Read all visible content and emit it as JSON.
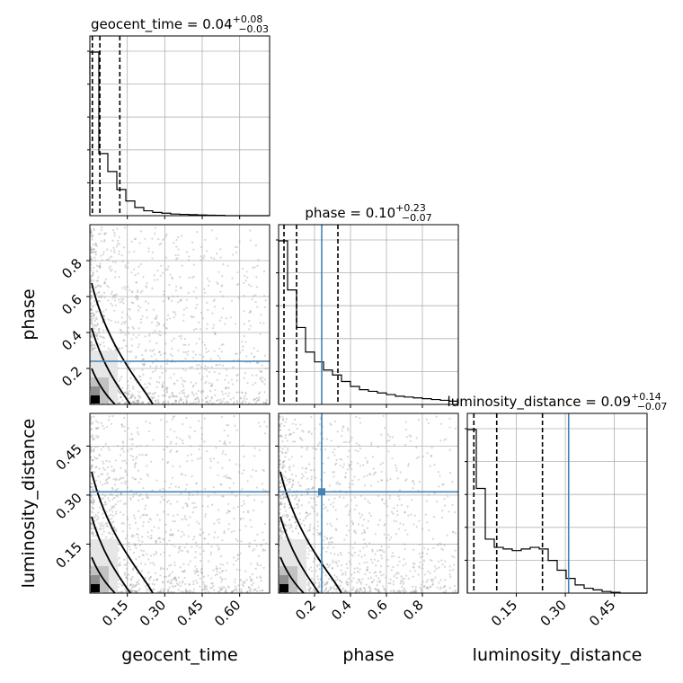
{
  "chart_data": {
    "type": "corner",
    "parameters": [
      "geocent_time",
      "phase",
      "luminosity_distance"
    ],
    "truths": [
      null,
      0.24,
      0.31
    ],
    "titles": [
      {
        "param": "geocent_time",
        "median": "0.04",
        "plus": "+0.08",
        "minus": "−0.03"
      },
      {
        "param": "phase",
        "median": "0.10",
        "plus": "+0.23",
        "minus": "−0.07"
      },
      {
        "param": "luminosity_distance",
        "median": "0.09",
        "plus": "+0.14",
        "minus": "−0.07"
      }
    ],
    "quantiles": {
      "geocent_time": [
        0.01,
        0.04,
        0.12
      ],
      "phase": [
        0.03,
        0.1,
        0.33
      ],
      "luminosity_distance": [
        0.02,
        0.09,
        0.23
      ]
    },
    "ranges": {
      "geocent_time": [
        0.0,
        0.72
      ],
      "phase": [
        0.0,
        1.0
      ],
      "luminosity_distance": [
        0.0,
        0.55
      ]
    },
    "ticks": {
      "geocent_time": [
        "0.15",
        "0.30",
        "0.45",
        "0.60"
      ],
      "phase": [
        "0.2",
        "0.4",
        "0.6",
        "0.8"
      ],
      "luminosity_distance": [
        "0.15",
        "0.30",
        "0.45"
      ]
    },
    "histograms": {
      "geocent_time": [
        1.0,
        0.38,
        0.27,
        0.16,
        0.09,
        0.05,
        0.03,
        0.02,
        0.015,
        0.01,
        0.008,
        0.006,
        0.004,
        0.003,
        0.002,
        0.0,
        0.0,
        0.0,
        0.0,
        0.0
      ],
      "phase": [
        1.0,
        0.7,
        0.47,
        0.32,
        0.26,
        0.21,
        0.18,
        0.14,
        0.11,
        0.09,
        0.08,
        0.07,
        0.06,
        0.05,
        0.045,
        0.04,
        0.035,
        0.03,
        0.025,
        0.02
      ],
      "luminosity_distance": [
        1.0,
        0.64,
        0.33,
        0.28,
        0.27,
        0.26,
        0.27,
        0.28,
        0.27,
        0.2,
        0.14,
        0.09,
        0.05,
        0.03,
        0.02,
        0.01,
        0.005,
        0.0,
        0.0,
        0.0
      ]
    },
    "grid": true
  }
}
